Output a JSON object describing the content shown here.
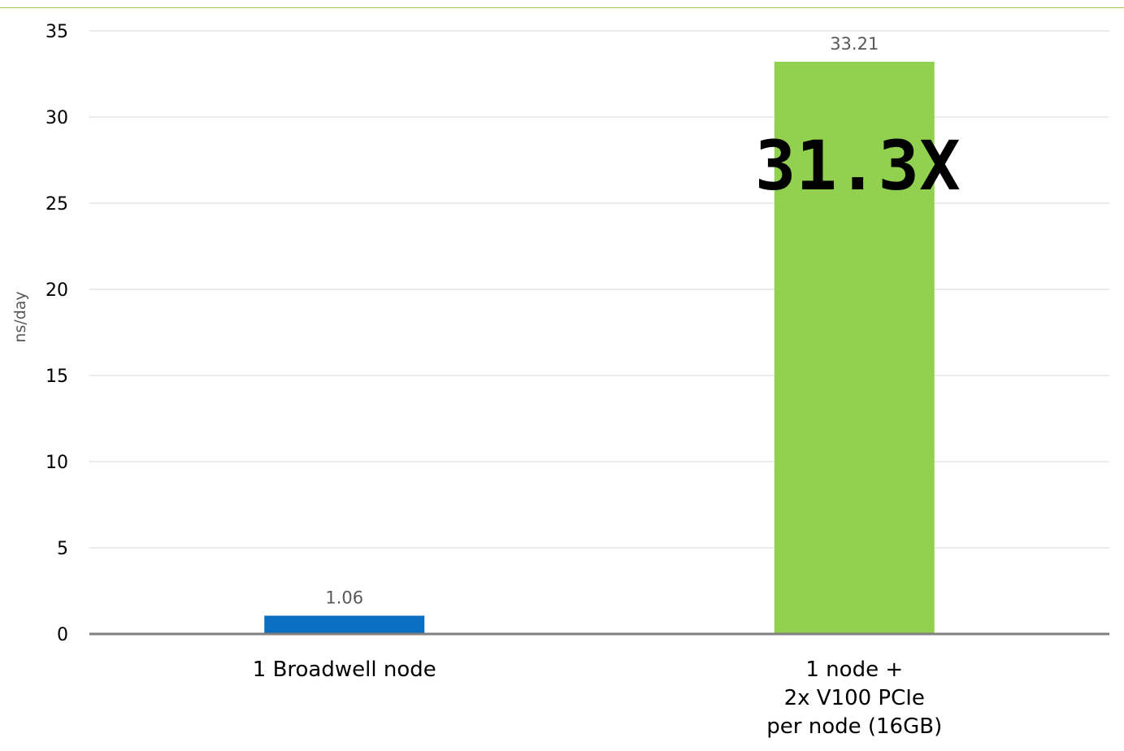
{
  "chart_data": {
    "type": "bar",
    "categories": [
      [
        "1 Broadwell node"
      ],
      [
        "1 node +",
        "2x V100 PCIe",
        "per node (16GB)"
      ]
    ],
    "values": [
      1.06,
      33.21
    ],
    "data_labels": [
      "1.06",
      "33.21"
    ],
    "bar_colors": [
      "#0a6fc2",
      "#92d050"
    ],
    "ylabel": "ns/day",
    "ylim": [
      0,
      35
    ],
    "yticks": [
      0,
      5,
      10,
      15,
      20,
      25,
      30,
      35
    ],
    "grid": true,
    "annotations": [
      {
        "text": "31.3X",
        "category_index": 1
      }
    ]
  }
}
